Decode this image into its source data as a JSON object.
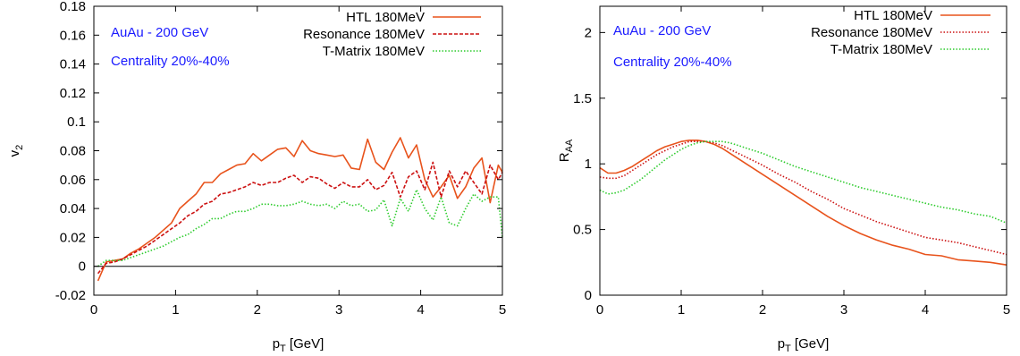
{
  "chart_data": [
    {
      "type": "line",
      "xlabel": "p",
      "xlabel_sub": "T",
      "xlabel_unit": " [GeV]",
      "ylabel": "v",
      "ylabel_sub": "2",
      "xlim": [
        0,
        5
      ],
      "ylim": [
        -0.02,
        0.18
      ],
      "xticks": [
        0,
        1,
        2,
        3,
        4,
        5
      ],
      "xtick_labels": [
        "0",
        "1",
        "2",
        "3",
        "4",
        "5"
      ],
      "yticks": [
        -0.02,
        0,
        0.02,
        0.04,
        0.06,
        0.08,
        0.1,
        0.12,
        0.14,
        0.16,
        0.18
      ],
      "ytick_labels": [
        "-0.02",
        "0",
        "0.02",
        "0.04",
        "0.06",
        "0.08",
        "0.1",
        "0.12",
        "0.14",
        "0.16",
        "0.18"
      ],
      "zero_line": true,
      "legend_position": "top-right",
      "annotations": [
        "AuAu - 200 GeV",
        "Centrality 20%-40%"
      ],
      "series": [
        {
          "name": "HTL 180MeV",
          "color": "#e8531c",
          "dash": "solid",
          "x": [
            0.05,
            0.15,
            0.25,
            0.35,
            0.45,
            0.55,
            0.65,
            0.75,
            0.85,
            0.95,
            1.05,
            1.15,
            1.25,
            1.35,
            1.45,
            1.55,
            1.65,
            1.75,
            1.85,
            1.95,
            2.05,
            2.15,
            2.25,
            2.35,
            2.45,
            2.55,
            2.65,
            2.75,
            2.85,
            2.95,
            3.05,
            3.15,
            3.25,
            3.35,
            3.45,
            3.55,
            3.65,
            3.75,
            3.85,
            3.95,
            4.05,
            4.15,
            4.25,
            4.35,
            4.45,
            4.55,
            4.65,
            4.75,
            4.85,
            4.95,
            5.0
          ],
          "y": [
            -0.01,
            0.003,
            0.004,
            0.005,
            0.009,
            0.012,
            0.016,
            0.02,
            0.025,
            0.03,
            0.04,
            0.045,
            0.05,
            0.058,
            0.058,
            0.064,
            0.067,
            0.07,
            0.071,
            0.078,
            0.073,
            0.077,
            0.081,
            0.082,
            0.076,
            0.087,
            0.08,
            0.078,
            0.077,
            0.076,
            0.077,
            0.068,
            0.067,
            0.088,
            0.072,
            0.067,
            0.079,
            0.089,
            0.075,
            0.084,
            0.06,
            0.048,
            0.055,
            0.063,
            0.047,
            0.055,
            0.068,
            0.075,
            0.044,
            0.07,
            0.065
          ]
        },
        {
          "name": "Resonance 180MeV",
          "color": "#cc1111",
          "dash": "dashed",
          "x": [
            0.05,
            0.15,
            0.25,
            0.35,
            0.45,
            0.55,
            0.65,
            0.75,
            0.85,
            0.95,
            1.05,
            1.15,
            1.25,
            1.35,
            1.45,
            1.55,
            1.65,
            1.75,
            1.85,
            1.95,
            2.05,
            2.15,
            2.25,
            2.35,
            2.45,
            2.55,
            2.65,
            2.75,
            2.85,
            2.95,
            3.05,
            3.15,
            3.25,
            3.35,
            3.45,
            3.55,
            3.65,
            3.75,
            3.85,
            3.95,
            4.05,
            4.15,
            4.25,
            4.35,
            4.45,
            4.55,
            4.65,
            4.75,
            4.85,
            4.95,
            5.0
          ],
          "y": [
            -0.005,
            0.002,
            0.003,
            0.005,
            0.008,
            0.011,
            0.014,
            0.018,
            0.022,
            0.026,
            0.03,
            0.035,
            0.038,
            0.043,
            0.045,
            0.05,
            0.051,
            0.053,
            0.055,
            0.058,
            0.056,
            0.058,
            0.058,
            0.061,
            0.063,
            0.058,
            0.062,
            0.061,
            0.057,
            0.054,
            0.058,
            0.055,
            0.055,
            0.06,
            0.053,
            0.056,
            0.065,
            0.048,
            0.062,
            0.066,
            0.053,
            0.072,
            0.048,
            0.066,
            0.055,
            0.066,
            0.058,
            0.05,
            0.07,
            0.06,
            0.065
          ]
        },
        {
          "name": "T-Matrix 180MeV",
          "color": "#2ecc2e",
          "dash": "dotted",
          "x": [
            0.05,
            0.15,
            0.25,
            0.35,
            0.45,
            0.55,
            0.65,
            0.75,
            0.85,
            0.95,
            1.05,
            1.15,
            1.25,
            1.35,
            1.45,
            1.55,
            1.65,
            1.75,
            1.85,
            1.95,
            2.05,
            2.15,
            2.25,
            2.35,
            2.45,
            2.55,
            2.65,
            2.75,
            2.85,
            2.95,
            3.05,
            3.15,
            3.25,
            3.35,
            3.45,
            3.55,
            3.65,
            3.75,
            3.85,
            3.95,
            4.05,
            4.15,
            4.25,
            4.35,
            4.45,
            4.55,
            4.65,
            4.75,
            4.85,
            4.95,
            5.0
          ],
          "y": [
            0.0,
            0.004,
            0.004,
            0.004,
            0.006,
            0.008,
            0.01,
            0.012,
            0.014,
            0.017,
            0.02,
            0.022,
            0.026,
            0.029,
            0.033,
            0.033,
            0.036,
            0.038,
            0.038,
            0.04,
            0.043,
            0.043,
            0.042,
            0.042,
            0.043,
            0.045,
            0.043,
            0.042,
            0.043,
            0.04,
            0.045,
            0.042,
            0.043,
            0.038,
            0.039,
            0.046,
            0.028,
            0.047,
            0.038,
            0.053,
            0.04,
            0.032,
            0.048,
            0.03,
            0.028,
            0.04,
            0.05,
            0.045,
            0.048,
            0.048,
            0.02
          ]
        }
      ]
    },
    {
      "type": "line",
      "xlabel": "p",
      "xlabel_sub": "T",
      "xlabel_unit": " [GeV]",
      "ylabel": "R",
      "ylabel_sub": "AA",
      "xlim": [
        0,
        5
      ],
      "ylim": [
        0,
        2.2
      ],
      "xticks": [
        0,
        1,
        2,
        3,
        4,
        5
      ],
      "xtick_labels": [
        "0",
        "1",
        "2",
        "3",
        "4",
        "5"
      ],
      "yticks": [
        0,
        0.5,
        1,
        1.5,
        2
      ],
      "ytick_labels": [
        "0",
        "0.5",
        "1",
        "1.5",
        "2"
      ],
      "zero_line": false,
      "legend_position": "top-right",
      "annotations": [
        "AuAu - 200 GeV",
        "Centrality 20%-40%"
      ],
      "series": [
        {
          "name": "HTL 180MeV",
          "color": "#e8531c",
          "dash": "solid",
          "x": [
            0.0,
            0.1,
            0.2,
            0.3,
            0.4,
            0.5,
            0.6,
            0.7,
            0.8,
            0.9,
            1.0,
            1.1,
            1.2,
            1.3,
            1.4,
            1.5,
            1.6,
            1.7,
            1.8,
            1.9,
            2.0,
            2.2,
            2.4,
            2.6,
            2.8,
            3.0,
            3.2,
            3.4,
            3.6,
            3.8,
            4.0,
            4.2,
            4.4,
            4.6,
            4.8,
            5.0
          ],
          "y": [
            0.97,
            0.93,
            0.93,
            0.95,
            0.98,
            1.02,
            1.06,
            1.1,
            1.13,
            1.15,
            1.17,
            1.18,
            1.18,
            1.17,
            1.15,
            1.12,
            1.08,
            1.04,
            1.0,
            0.96,
            0.92,
            0.84,
            0.76,
            0.68,
            0.6,
            0.53,
            0.47,
            0.42,
            0.38,
            0.35,
            0.31,
            0.3,
            0.27,
            0.26,
            0.25,
            0.23
          ]
        },
        {
          "name": "Resonance 180MeV",
          "color": "#cc1111",
          "dash": "dotted",
          "x": [
            0.0,
            0.1,
            0.2,
            0.3,
            0.4,
            0.5,
            0.6,
            0.7,
            0.8,
            0.9,
            1.0,
            1.1,
            1.2,
            1.3,
            1.4,
            1.5,
            1.6,
            1.7,
            1.8,
            1.9,
            2.0,
            2.2,
            2.4,
            2.6,
            2.8,
            3.0,
            3.2,
            3.4,
            3.6,
            3.8,
            4.0,
            4.2,
            4.4,
            4.6,
            4.8,
            5.0
          ],
          "y": [
            0.9,
            0.89,
            0.89,
            0.91,
            0.95,
            0.99,
            1.03,
            1.07,
            1.1,
            1.13,
            1.15,
            1.17,
            1.17,
            1.17,
            1.16,
            1.14,
            1.11,
            1.08,
            1.05,
            1.02,
            0.99,
            0.92,
            0.86,
            0.79,
            0.73,
            0.66,
            0.61,
            0.56,
            0.52,
            0.48,
            0.44,
            0.42,
            0.4,
            0.37,
            0.34,
            0.31
          ]
        },
        {
          "name": "T-Matrix 180MeV",
          "color": "#2ecc2e",
          "dash": "dotted",
          "x": [
            0.0,
            0.1,
            0.2,
            0.3,
            0.4,
            0.5,
            0.6,
            0.7,
            0.8,
            0.9,
            1.0,
            1.1,
            1.2,
            1.3,
            1.4,
            1.5,
            1.6,
            1.7,
            1.8,
            1.9,
            2.0,
            2.2,
            2.4,
            2.6,
            2.8,
            3.0,
            3.2,
            3.4,
            3.6,
            3.8,
            4.0,
            4.2,
            4.4,
            4.6,
            4.8,
            5.0
          ],
          "y": [
            0.8,
            0.77,
            0.78,
            0.8,
            0.84,
            0.88,
            0.93,
            0.98,
            1.03,
            1.07,
            1.11,
            1.14,
            1.16,
            1.17,
            1.17,
            1.17,
            1.16,
            1.14,
            1.12,
            1.1,
            1.08,
            1.03,
            0.98,
            0.94,
            0.9,
            0.86,
            0.82,
            0.79,
            0.76,
            0.73,
            0.7,
            0.67,
            0.65,
            0.62,
            0.6,
            0.55
          ]
        }
      ]
    }
  ]
}
